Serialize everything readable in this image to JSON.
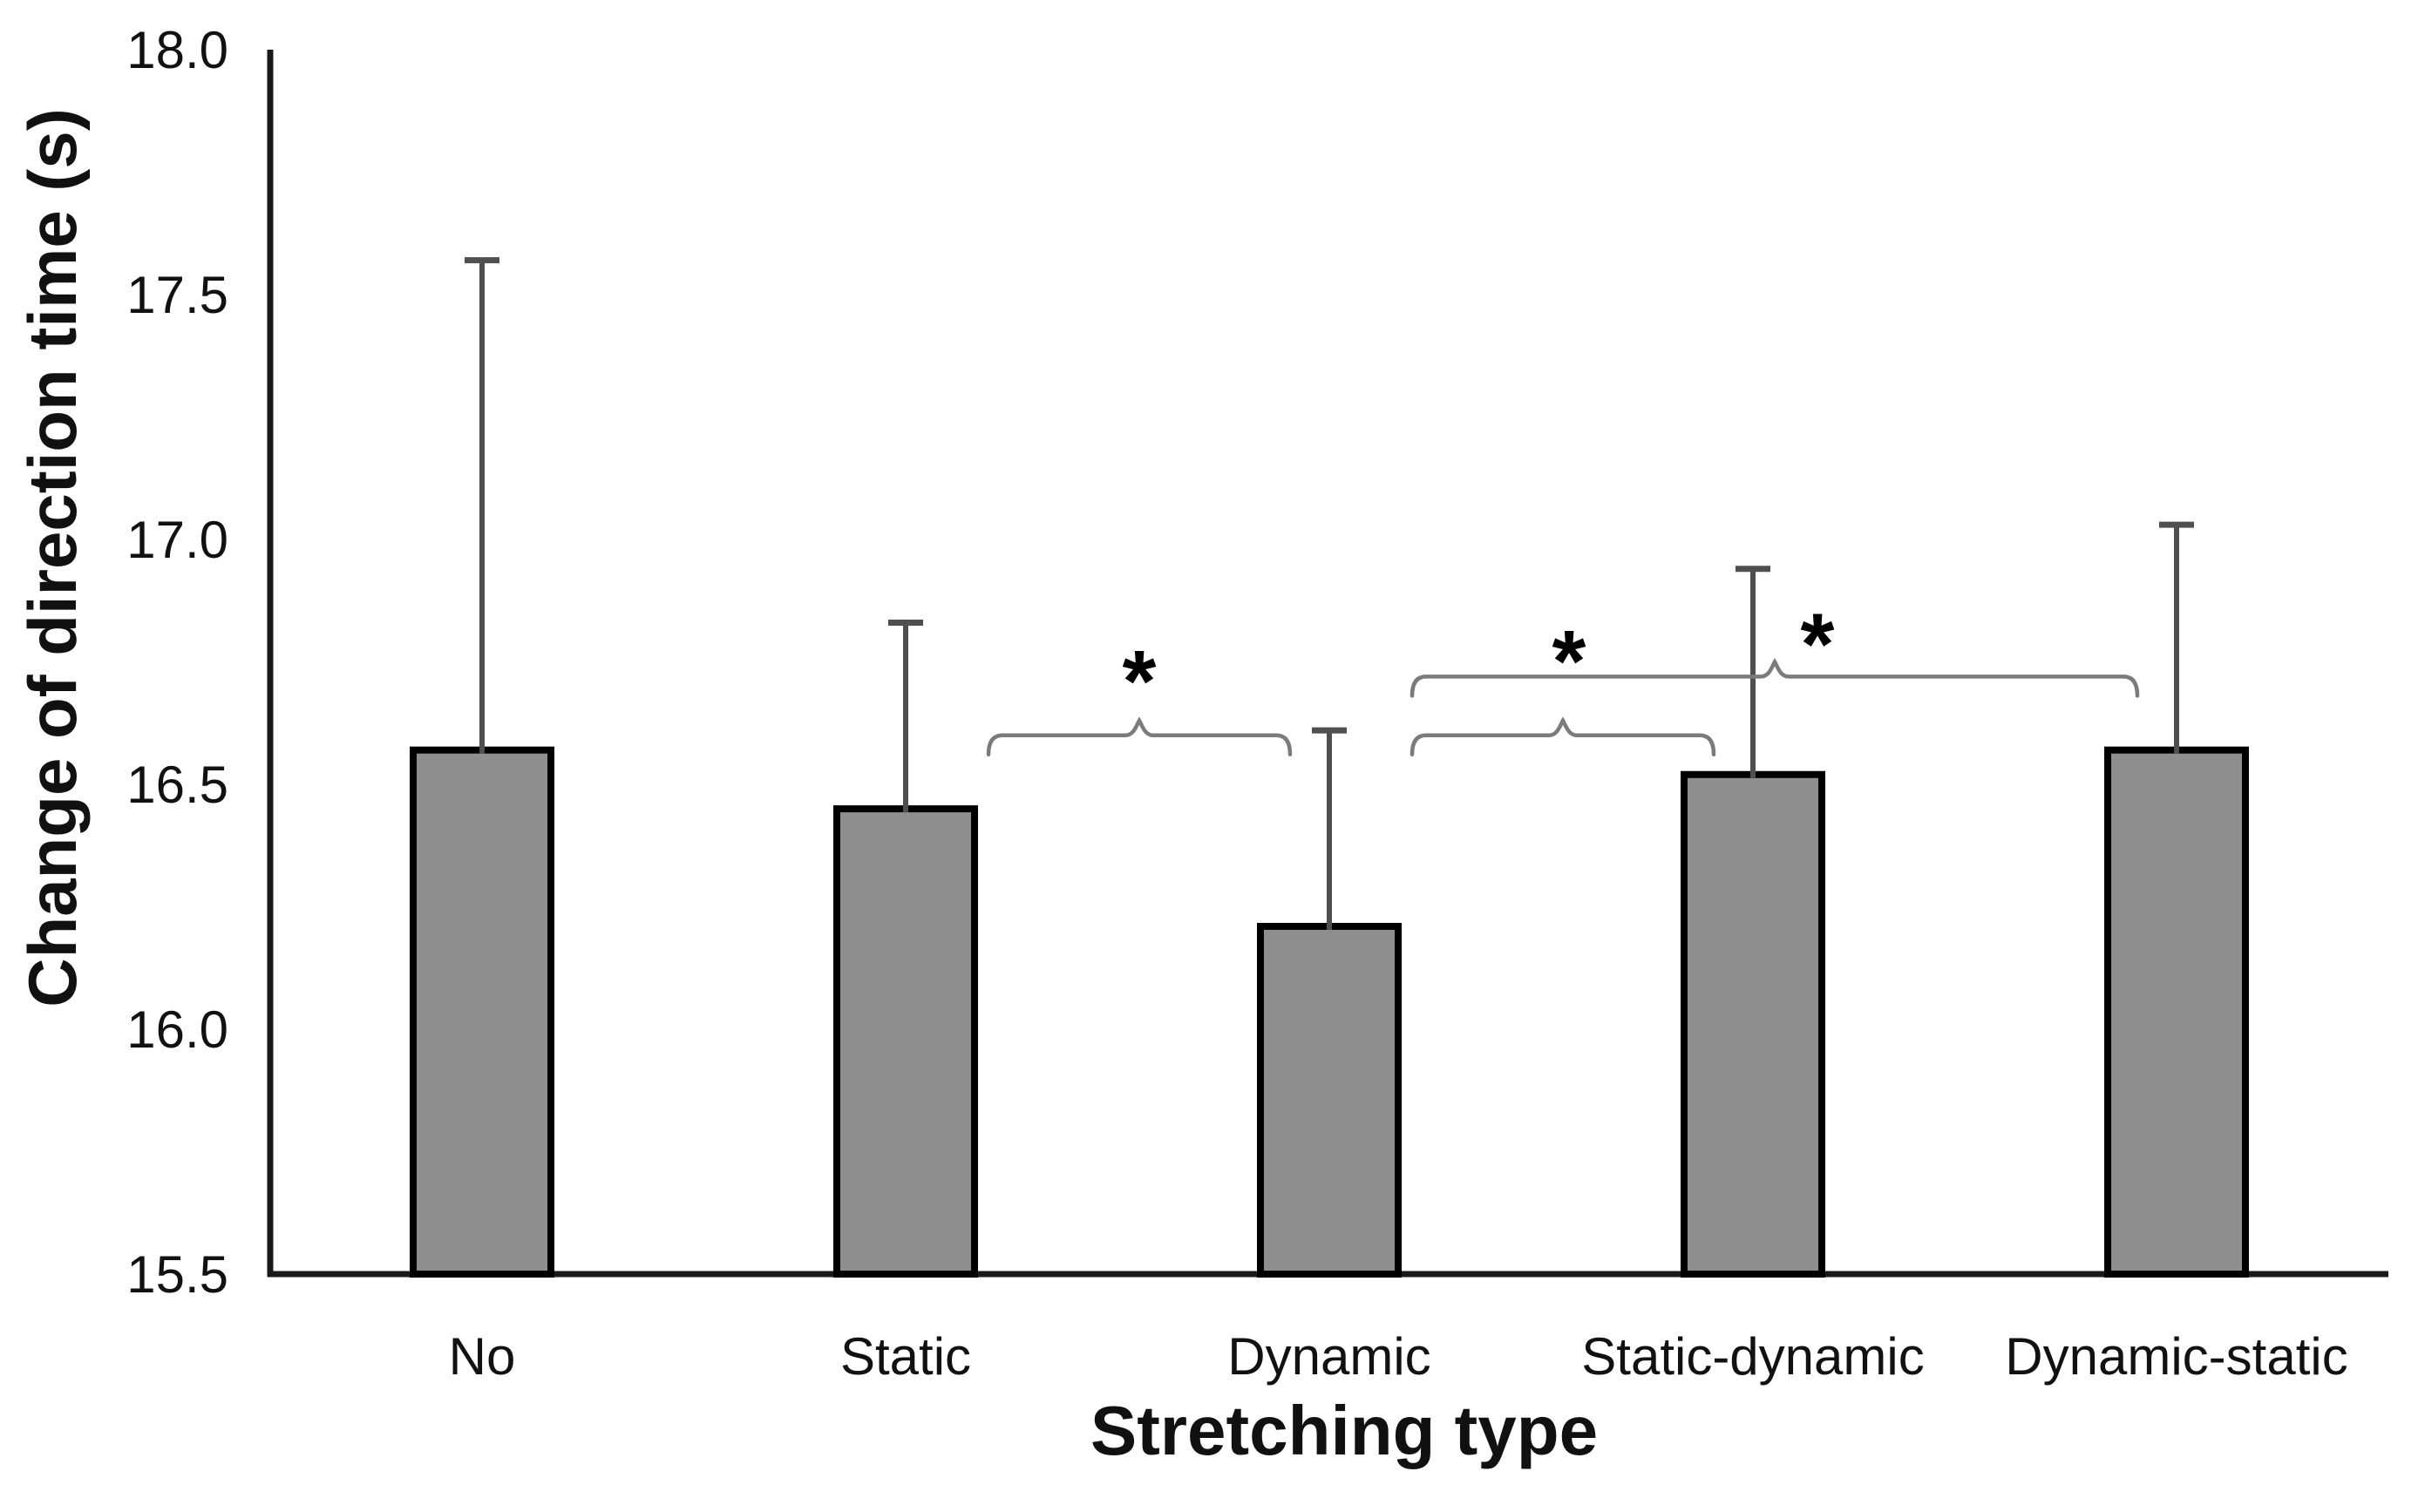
{
  "chart_data": {
    "type": "bar",
    "title": "",
    "xlabel": "Stretching type",
    "ylabel": "Change of direction time (s)",
    "categories": [
      "No",
      "Static",
      "Dynamic",
      "Static-dynamic",
      "Dynamic-static"
    ],
    "values": [
      16.57,
      16.45,
      16.21,
      16.52,
      16.57
    ],
    "error_upper_tops": [
      17.57,
      16.83,
      16.61,
      16.94,
      17.03
    ],
    "error_magnitudes": [
      1.0,
      0.38,
      0.4,
      0.42,
      0.46
    ],
    "ylim": [
      15.5,
      18.0
    ],
    "ytick_step": 0.5,
    "yticks": [
      "15.5",
      "16.0",
      "16.5",
      "17.0",
      "17.5",
      "18.0"
    ],
    "grid": false,
    "legend": false,
    "background": "#ffffff",
    "bar_color": "#8e8e8e",
    "bar_border_color": "#000000",
    "error_bar_color": "#4f4f4f",
    "bracket_color": "#7b7b7b",
    "axis_color": "#1a1a1a",
    "text_color": "#111111",
    "significance": [
      {
        "from": "Static",
        "to": "Dynamic",
        "level": 16.6,
        "label": "*",
        "label_offset": [
          0,
          -80
        ]
      },
      {
        "from": "Dynamic",
        "to": "Static-dynamic",
        "level": 16.6,
        "label": "*",
        "label_offset": [
          7,
          -103
        ]
      },
      {
        "from": "Dynamic",
        "to": "Dynamic-static",
        "level": 16.72,
        "label": "*",
        "label_offset": [
          49,
          -55
        ]
      }
    ]
  }
}
